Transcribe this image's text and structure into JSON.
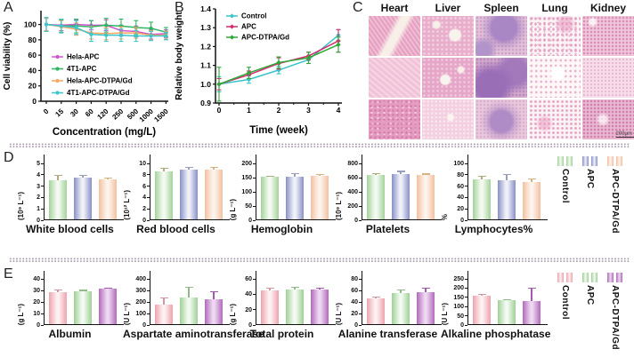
{
  "panels": {
    "a": {
      "label": "A"
    },
    "b": {
      "label": "B"
    },
    "c": {
      "label": "C",
      "organs": [
        "Heart",
        "Liver",
        "Spleen",
        "Lung",
        "Kidney"
      ],
      "rows": 3,
      "scale_bar": "200μm"
    },
    "d": {
      "label": "D"
    },
    "e": {
      "label": "E"
    }
  },
  "legend_d": {
    "items": [
      {
        "label": "Control"
      },
      {
        "label": "APC"
      },
      {
        "label": "APC-DTPA/Gd"
      }
    ]
  },
  "legend_e": {
    "items": [
      {
        "label": "Control"
      },
      {
        "label": "APC"
      },
      {
        "label": "APC-DTPA/Gd"
      }
    ]
  },
  "palettes": {
    "d": [
      {
        "edge": "#a3d29a",
        "center": "#f4faf2",
        "err": "#b3ab80"
      },
      {
        "edge": "#8890c6",
        "center": "#f0f1f8",
        "err": "#9aa0bb"
      },
      {
        "edge": "#f3c0a0",
        "center": "#fdf4ed",
        "err": "#d4b482"
      }
    ],
    "e": [
      {
        "edge": "#eda3ae",
        "center": "#fdf1f2",
        "err": "#d097a1"
      },
      {
        "edge": "#9fd096",
        "center": "#f3faf1",
        "err": "#8fbc86"
      },
      {
        "edge": "#b269bb",
        "center": "#edd9f2",
        "err": "#a05bad"
      }
    ]
  },
  "chart_data": [
    {
      "id": "cell_viability",
      "type": "line",
      "panel": "A",
      "title": "",
      "xlabel": "Concentration (mg/L)",
      "ylabel": "Cell viability (%)",
      "categories": [
        "0",
        "15",
        "30",
        "60",
        "120",
        "250",
        "500",
        "1000",
        "1500"
      ],
      "ylim": [
        0,
        118
      ],
      "yticks": [
        0,
        20,
        40,
        60,
        80,
        100
      ],
      "ytick_decimals": 0,
      "grid": false,
      "legend_position": "inside-left",
      "series": [
        {
          "name": "Hela-APC",
          "color": "#d055cc",
          "values": [
            100,
            99,
            100,
            99,
            99,
            92,
            91,
            87,
            88
          ],
          "errors": [
            8,
            7,
            6,
            6,
            7,
            7,
            7,
            6,
            5
          ]
        },
        {
          "name": "4T1-APC",
          "color": "#2eb564",
          "values": [
            100,
            98,
            98,
            97,
            99,
            98,
            96,
            95,
            90
          ],
          "errors": [
            9,
            8,
            9,
            8,
            9,
            9,
            9,
            8,
            6
          ]
        },
        {
          "name": "Hela-APC-DTPA/Gd",
          "color": "#f5a85e",
          "values": [
            100,
            97,
            94,
            89,
            88,
            89,
            89,
            86,
            86
          ],
          "errors": [
            8,
            8,
            8,
            8,
            8,
            8,
            7,
            6,
            5
          ]
        },
        {
          "name": "4T1-APC-DTPA/Gd",
          "color": "#3ec6cd",
          "values": [
            100,
            98,
            96,
            87,
            86,
            86,
            85,
            85,
            85
          ],
          "errors": [
            9,
            9,
            9,
            9,
            8,
            8,
            7,
            6,
            5
          ]
        }
      ]
    },
    {
      "id": "body_weight",
      "type": "line",
      "panel": "B",
      "title": "",
      "xlabel": "Time (week)",
      "ylabel": "Relative body weight",
      "categories": [
        "0",
        "1",
        "2",
        "3",
        "4"
      ],
      "ylim": [
        0.9,
        1.4
      ],
      "yticks": [
        0.9,
        1.0,
        1.1,
        1.2,
        1.3,
        1.4
      ],
      "ytick_decimals": 1,
      "grid": false,
      "legend_position": "inside-top-left",
      "series": [
        {
          "name": "Control",
          "color": "#38c4c8",
          "values": [
            1.0,
            1.025,
            1.075,
            1.13,
            1.26
          ],
          "errors": [
            0.04,
            0.02,
            0.02,
            0.02,
            0.03
          ]
        },
        {
          "name": "APC",
          "color": "#d42a6e",
          "values": [
            1.0,
            1.05,
            1.11,
            1.15,
            1.23
          ],
          "errors": [
            0.03,
            0.02,
            0.03,
            0.02,
            0.06
          ]
        },
        {
          "name": "APC-DTPA/Gd",
          "color": "#2fa838",
          "values": [
            1.0,
            1.06,
            1.115,
            1.14,
            1.21
          ],
          "errors": [
            0.09,
            0.03,
            0.03,
            0.03,
            0.04
          ]
        }
      ]
    },
    {
      "id": "wbc",
      "type": "bar",
      "panel": "D",
      "title": "White blood cells",
      "ylabel": "(10⁹ L⁻¹)",
      "ylim": [
        0,
        5
      ],
      "yticks": [
        0,
        1,
        2,
        3,
        4,
        5
      ],
      "groups": [
        "Control",
        "APC",
        "APC-DTPA/Gd"
      ],
      "values": [
        3.45,
        3.7,
        3.55
      ],
      "errors": [
        0.45,
        0.2,
        0.1
      ]
    },
    {
      "id": "rbc",
      "type": "bar",
      "panel": "D",
      "title": "Red blood cells",
      "ylabel": "(10¹² L⁻¹)",
      "ylim": [
        0,
        10
      ],
      "yticks": [
        0,
        2,
        4,
        6,
        8,
        10
      ],
      "groups": [
        "Control",
        "APC",
        "APC-DTPA/Gd"
      ],
      "values": [
        8.4,
        8.7,
        8.7
      ],
      "errors": [
        0.6,
        0.55,
        0.45
      ]
    },
    {
      "id": "hemoglobin",
      "type": "bar",
      "panel": "D",
      "title": "Hemoglobin",
      "ylabel": "(g L⁻¹)",
      "ylim": [
        0,
        200
      ],
      "yticks": [
        0,
        50,
        100,
        150,
        200
      ],
      "groups": [
        "Control",
        "APC",
        "APC-DTPA/Gd"
      ],
      "values": [
        151,
        150,
        154
      ],
      "errors": [
        3,
        13,
        4
      ]
    },
    {
      "id": "platelets",
      "type": "bar",
      "panel": "D",
      "title": "Platelets",
      "ylabel": "(10⁹ L⁻¹)",
      "ylim": [
        0,
        800
      ],
      "yticks": [
        0,
        200,
        400,
        600,
        800
      ],
      "groups": [
        "Control",
        "APC",
        "APC-DTPA/Gd"
      ],
      "values": [
        620,
        640,
        630
      ],
      "errors": [
        30,
        40,
        12
      ]
    },
    {
      "id": "lymphocytes",
      "type": "bar",
      "panel": "D",
      "title": "Lymphocytes%",
      "ylabel": "%",
      "ylim": [
        0,
        100
      ],
      "yticks": [
        0,
        20,
        40,
        60,
        80,
        100
      ],
      "groups": [
        "Control",
        "APC",
        "APC-DTPA/Gd"
      ],
      "values": [
        70,
        68,
        65
      ],
      "errors": [
        6,
        11,
        7
      ]
    },
    {
      "id": "albumin",
      "type": "bar",
      "panel": "E",
      "title": "Albumin",
      "ylabel": "(g L⁻¹)",
      "ylim": [
        0,
        40
      ],
      "yticks": [
        0,
        10,
        20,
        30,
        40
      ],
      "groups": [
        "Control",
        "APC",
        "APC-DTPA/Gd"
      ],
      "values": [
        28,
        28.5,
        30.5
      ],
      "errors": [
        2,
        1,
        0.7
      ]
    },
    {
      "id": "ast",
      "type": "bar",
      "panel": "E",
      "title": "Aspartate aminotransferase",
      "ylabel": "(U L⁻¹)",
      "ylim": [
        0,
        400
      ],
      "yticks": [
        0,
        100,
        200,
        300,
        400
      ],
      "groups": [
        "Control",
        "APC",
        "APC-DTPA/Gd"
      ],
      "values": [
        170,
        228,
        212
      ],
      "errors": [
        60,
        92,
        72
      ]
    },
    {
      "id": "total_protein",
      "type": "bar",
      "panel": "E",
      "title": "Total protein",
      "ylabel": "(g L⁻¹)",
      "ylim": [
        0,
        60
      ],
      "yticks": [
        0,
        20,
        40,
        60
      ],
      "groups": [
        "Control",
        "APC",
        "APC-DTPA/Gd"
      ],
      "values": [
        43.5,
        45,
        45.5
      ],
      "errors": [
        4,
        3.5,
        2
      ]
    },
    {
      "id": "alt",
      "type": "bar",
      "panel": "E",
      "title": "Alanine transferase",
      "ylabel": "(U L⁻¹)",
      "ylim": [
        0,
        80
      ],
      "yticks": [
        0,
        20,
        40,
        60,
        80
      ],
      "groups": [
        "Control",
        "APC",
        "APC-DTPA/Gd"
      ],
      "values": [
        45,
        54,
        55
      ],
      "errors": [
        2,
        6,
        8
      ]
    },
    {
      "id": "alp",
      "type": "bar",
      "panel": "E",
      "title": "Alkaline phosphatase",
      "ylabel": "(U L⁻¹)",
      "ylim": [
        0,
        250
      ],
      "yticks": [
        0,
        50,
        100,
        150,
        200,
        250
      ],
      "groups": [
        "Control",
        "APC",
        "APC-DTPA/Gd"
      ],
      "values": [
        155,
        132,
        127
      ],
      "errors": [
        8,
        3,
        68
      ]
    }
  ]
}
